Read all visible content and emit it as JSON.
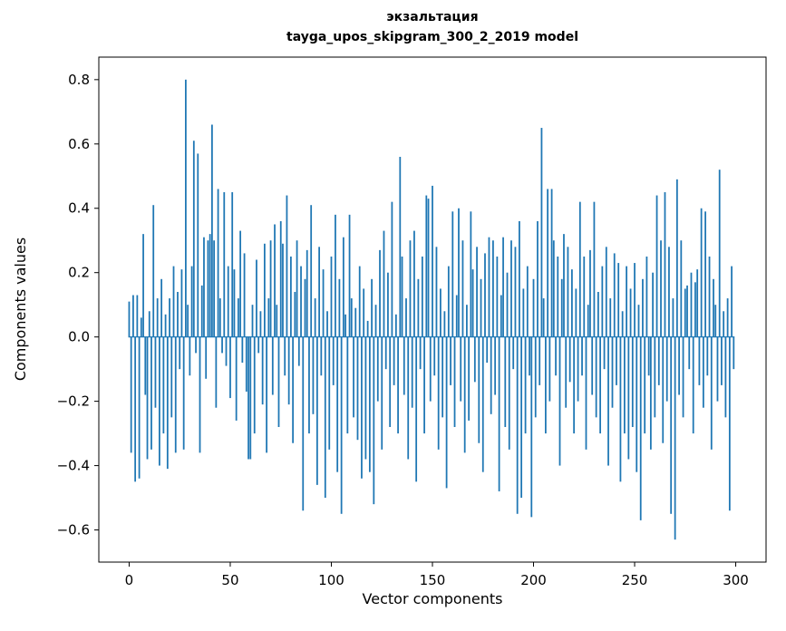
{
  "title_line1": "экзальтация",
  "title_line2": "tayga_upos_skipgram_300_2_2019 model",
  "chart_data": {
    "type": "bar",
    "title": "экзальтация — tayga_upos_skipgram_300_2_2019 model",
    "xlabel": "Vector components",
    "ylabel": "Components values",
    "xlim": [
      -15,
      315
    ],
    "ylim": [
      -0.7,
      0.87
    ],
    "xticks": [
      0,
      50,
      100,
      150,
      200,
      250,
      300
    ],
    "yticks": [
      -0.6,
      -0.4,
      -0.2,
      0.0,
      0.2,
      0.4,
      0.6,
      0.8
    ],
    "grid": false,
    "legend": "none",
    "bar_color": "#1f77b4",
    "values": [
      0.11,
      -0.36,
      0.13,
      -0.45,
      0.13,
      -0.44,
      0.06,
      0.32,
      -0.18,
      -0.38,
      0.08,
      -0.35,
      0.41,
      -0.22,
      0.12,
      -0.4,
      0.18,
      -0.3,
      0.07,
      -0.41,
      0.12,
      -0.25,
      0.22,
      -0.36,
      0.14,
      -0.1,
      0.21,
      -0.35,
      0.8,
      0.1,
      -0.12,
      0.22,
      0.61,
      -0.05,
      0.57,
      -0.36,
      0.16,
      0.31,
      -0.13,
      0.3,
      0.32,
      0.66,
      0.3,
      -0.22,
      0.46,
      0.12,
      -0.05,
      0.45,
      -0.09,
      0.22,
      -0.19,
      0.45,
      0.21,
      -0.26,
      0.12,
      0.33,
      -0.08,
      0.26,
      -0.17,
      -0.38,
      -0.38,
      0.1,
      -0.3,
      0.24,
      -0.05,
      0.08,
      -0.21,
      0.29,
      -0.36,
      0.12,
      0.3,
      -0.18,
      0.35,
      0.1,
      -0.28,
      0.36,
      0.29,
      -0.12,
      0.44,
      -0.21,
      0.25,
      -0.33,
      0.14,
      0.3,
      -0.09,
      0.22,
      -0.54,
      0.18,
      0.27,
      -0.3,
      0.41,
      -0.24,
      0.12,
      -0.46,
      0.28,
      -0.12,
      0.21,
      -0.5,
      0.08,
      -0.35,
      0.25,
      -0.15,
      0.38,
      -0.42,
      0.18,
      -0.55,
      0.31,
      0.07,
      -0.3,
      0.38,
      0.12,
      -0.25,
      0.09,
      -0.32,
      0.22,
      -0.44,
      0.15,
      -0.38,
      0.05,
      -0.42,
      0.18,
      -0.52,
      0.1,
      -0.2,
      0.27,
      -0.35,
      0.33,
      -0.1,
      0.2,
      -0.28,
      0.42,
      -0.15,
      0.07,
      -0.3,
      0.56,
      0.25,
      -0.18,
      0.12,
      -0.38,
      0.3,
      -0.22,
      0.33,
      -0.45,
      0.18,
      -0.1,
      0.25,
      -0.3,
      0.44,
      0.43,
      -0.2,
      0.47,
      -0.12,
      0.28,
      -0.35,
      0.15,
      -0.25,
      0.08,
      -0.47,
      0.22,
      -0.15,
      0.39,
      -0.28,
      0.13,
      0.4,
      -0.2,
      0.3,
      -0.36,
      0.1,
      -0.26,
      0.39,
      0.21,
      -0.14,
      0.28,
      -0.33,
      0.18,
      -0.42,
      0.26,
      -0.08,
      0.31,
      -0.24,
      0.3,
      -0.18,
      0.25,
      -0.48,
      0.13,
      0.31,
      -0.28,
      0.2,
      -0.35,
      0.3,
      -0.1,
      0.28,
      -0.55,
      0.36,
      -0.5,
      0.15,
      -0.3,
      0.22,
      -0.12,
      -0.56,
      0.18,
      -0.25,
      0.36,
      -0.15,
      0.65,
      0.12,
      -0.3,
      0.46,
      -0.2,
      0.46,
      0.3,
      -0.12,
      0.25,
      -0.4,
      0.18,
      0.32,
      -0.22,
      0.28,
      -0.14,
      0.21,
      -0.3,
      0.15,
      -0.2,
      0.42,
      -0.12,
      0.25,
      -0.35,
      0.1,
      0.27,
      -0.18,
      0.42,
      -0.25,
      0.14,
      -0.3,
      0.22,
      -0.1,
      0.28,
      -0.4,
      0.12,
      -0.22,
      0.26,
      -0.15,
      0.23,
      -0.45,
      0.08,
      -0.3,
      0.22,
      -0.38,
      0.15,
      -0.28,
      0.23,
      -0.42,
      0.1,
      -0.57,
      0.18,
      -0.3,
      0.25,
      -0.12,
      -0.35,
      0.2,
      -0.25,
      0.44,
      -0.15,
      0.3,
      -0.33,
      0.45,
      -0.2,
      0.28,
      -0.55,
      0.12,
      -0.63,
      0.49,
      -0.18,
      0.3,
      -0.25,
      0.15,
      0.16,
      -0.1,
      0.2,
      -0.3,
      0.17,
      0.21,
      -0.15,
      0.4,
      -0.22,
      0.39,
      -0.12,
      0.25,
      -0.35,
      0.18,
      0.1,
      -0.2,
      0.52,
      -0.15,
      0.08,
      -0.25,
      0.12,
      -0.54,
      0.22,
      -0.1
    ]
  }
}
